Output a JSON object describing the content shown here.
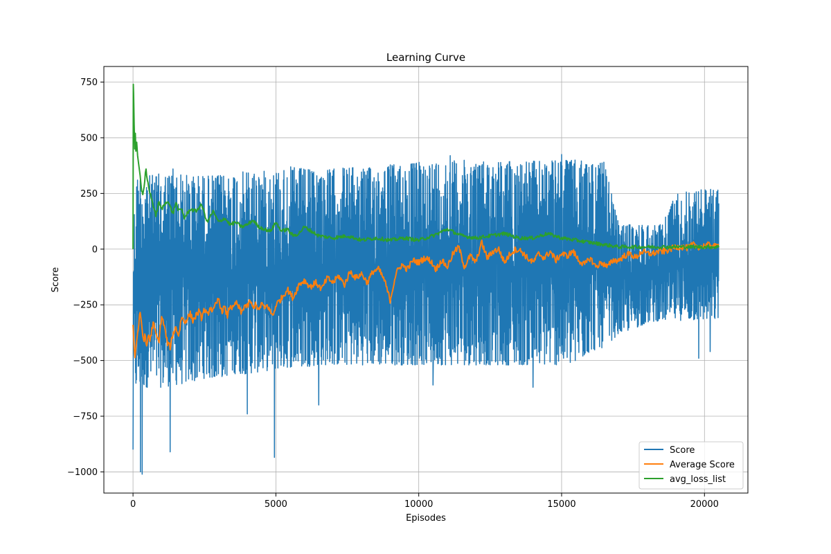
{
  "chart_data": {
    "type": "line",
    "title": "Learning Curve",
    "xlabel": "Episodes",
    "ylabel": "Score",
    "xlim": [
      -1020,
      21520
    ],
    "ylim": [
      -1095,
      820
    ],
    "xticks": [
      0,
      5000,
      10000,
      15000,
      20000
    ],
    "yticks": [
      -1000,
      -750,
      -500,
      -250,
      0,
      250,
      500,
      750
    ],
    "grid": true,
    "legend_position": "lower-right",
    "series": [
      {
        "name": "Score",
        "color": "#1f77b4",
        "kind": "noisy-band",
        "x": [
          0,
          100,
          300,
          600,
          1000,
          1500,
          2000,
          2500,
          3000,
          3500,
          4000,
          4500,
          5000,
          5500,
          6000,
          6500,
          7000,
          7500,
          8000,
          8500,
          9000,
          9500,
          10000,
          10500,
          11000,
          11500,
          12000,
          12500,
          13000,
          13500,
          14000,
          14500,
          15000,
          15500,
          16000,
          16500,
          17000,
          17500,
          18000,
          18500,
          19000,
          19500,
          20000,
          20500
        ],
        "upper": [
          60,
          320,
          340,
          330,
          340,
          340,
          330,
          330,
          330,
          340,
          350,
          350,
          350,
          370,
          360,
          350,
          360,
          370,
          360,
          370,
          380,
          380,
          390,
          390,
          395,
          400,
          395,
          395,
          395,
          395,
          395,
          395,
          400,
          400,
          390,
          390,
          110,
          110,
          110,
          110,
          250,
          260,
          270,
          270
        ],
        "lower": [
          -680,
          -640,
          -620,
          -620,
          -620,
          -610,
          -600,
          -580,
          -580,
          -560,
          -560,
          -550,
          -540,
          -530,
          -530,
          -520,
          -520,
          -520,
          -520,
          -520,
          -520,
          -520,
          -520,
          -520,
          -520,
          -520,
          -520,
          -520,
          -520,
          -520,
          -520,
          -520,
          -520,
          -520,
          -460,
          -440,
          -380,
          -360,
          -330,
          -320,
          -320,
          -320,
          -320,
          -320
        ],
        "spikes": [
          {
            "x": 0,
            "y": -900
          },
          {
            "x": 260,
            "y": -1000
          },
          {
            "x": 320,
            "y": -1010
          },
          {
            "x": 1300,
            "y": -910
          },
          {
            "x": 1400,
            "y": -860
          },
          {
            "x": 4000,
            "y": -740
          },
          {
            "x": 4950,
            "y": -935
          },
          {
            "x": 6500,
            "y": -700
          },
          {
            "x": 10500,
            "y": -610
          },
          {
            "x": 14000,
            "y": -620
          },
          {
            "x": 19800,
            "y": -490
          },
          {
            "x": 20200,
            "y": -460
          },
          {
            "x": 15000,
            "y": 425
          },
          {
            "x": 11100,
            "y": 420
          },
          {
            "x": 1400,
            "y": 360
          }
        ]
      },
      {
        "name": "Average Score",
        "color": "#ff7f0e",
        "x": [
          0,
          60,
          120,
          180,
          240,
          300,
          360,
          420,
          480,
          540,
          600,
          700,
          800,
          900,
          1000,
          1100,
          1200,
          1300,
          1400,
          1500,
          1600,
          1700,
          1800,
          1900,
          2000,
          2100,
          2200,
          2300,
          2400,
          2500,
          2600,
          2700,
          2800,
          2900,
          3000,
          3100,
          3200,
          3300,
          3400,
          3500,
          3600,
          3700,
          3800,
          3900,
          4000,
          4100,
          4200,
          4300,
          4400,
          4500,
          4600,
          4700,
          4800,
          4900,
          5000,
          5200,
          5400,
          5600,
          5800,
          6000,
          6200,
          6400,
          6600,
          6800,
          7000,
          7200,
          7400,
          7600,
          7800,
          8000,
          8200,
          8400,
          8600,
          8800,
          9000,
          9200,
          9400,
          9600,
          9800,
          10000,
          10200,
          10400,
          10600,
          10800,
          11000,
          11200,
          11400,
          11600,
          11800,
          12000,
          12200,
          12400,
          12600,
          12800,
          13000,
          13200,
          13400,
          13600,
          13800,
          14000,
          14200,
          14400,
          14600,
          14800,
          15000,
          15200,
          15400,
          15600,
          15800,
          16000,
          16200,
          16400,
          16600,
          16800,
          17000,
          17200,
          17400,
          17600,
          17800,
          18000,
          18200,
          18400,
          18600,
          18800,
          19000,
          19200,
          19400,
          19600,
          19800,
          20000,
          20200,
          20400,
          20500
        ],
        "y": [
          -340,
          -490,
          -420,
          -360,
          -290,
          -330,
          -410,
          -390,
          -440,
          -380,
          -410,
          -330,
          -380,
          -420,
          -300,
          -350,
          -420,
          -440,
          -380,
          -350,
          -390,
          -300,
          -330,
          -310,
          -290,
          -320,
          -300,
          -280,
          -310,
          -270,
          -300,
          -260,
          -280,
          -250,
          -220,
          -280,
          -260,
          -300,
          -250,
          -270,
          -240,
          -260,
          -290,
          -250,
          -260,
          -230,
          -270,
          -240,
          -280,
          -240,
          -270,
          -250,
          -280,
          -300,
          -250,
          -220,
          -180,
          -220,
          -160,
          -140,
          -170,
          -150,
          -180,
          -130,
          -150,
          -120,
          -160,
          -100,
          -130,
          -110,
          -150,
          -100,
          -90,
          -140,
          -230,
          -110,
          -70,
          -90,
          -50,
          -60,
          -40,
          -50,
          -90,
          -50,
          -80,
          -20,
          10,
          -80,
          -30,
          -60,
          30,
          -40,
          -10,
          0,
          -60,
          -20,
          0,
          -10,
          -40,
          -60,
          -20,
          -40,
          -10,
          -50,
          -20,
          -30,
          -10,
          -50,
          -70,
          -40,
          -80,
          -60,
          -80,
          -50,
          -50,
          -30,
          -20,
          -40,
          -10,
          -20,
          -20,
          -10,
          -10,
          0,
          10,
          10,
          5,
          20,
          10,
          15,
          20,
          10,
          20
        ],
        "noise": 14
      },
      {
        "name": "avg_loss_list",
        "color": "#2ca02c",
        "x": [
          0,
          10,
          20,
          40,
          60,
          80,
          100,
          130,
          160,
          200,
          250,
          300,
          350,
          400,
          450,
          500,
          550,
          600,
          700,
          800,
          900,
          1000,
          1100,
          1200,
          1300,
          1400,
          1500,
          1600,
          1700,
          1800,
          1900,
          2000,
          2200,
          2400,
          2600,
          2800,
          3000,
          3200,
          3400,
          3600,
          3800,
          4000,
          4200,
          4400,
          4600,
          4800,
          5000,
          5200,
          5400,
          5600,
          5800,
          6000,
          6500,
          7000,
          7500,
          8000,
          8500,
          9000,
          9500,
          10000,
          10500,
          11000,
          11500,
          12000,
          12500,
          13000,
          13500,
          14000,
          14500,
          15000,
          15500,
          16000,
          16500,
          17000,
          17500,
          18000,
          18500,
          19000,
          19500,
          20000,
          20500
        ],
        "y": [
          0,
          740,
          700,
          560,
          450,
          520,
          440,
          480,
          420,
          380,
          330,
          260,
          240,
          290,
          360,
          310,
          280,
          250,
          200,
          150,
          210,
          180,
          200,
          220,
          190,
          160,
          210,
          170,
          180,
          140,
          160,
          180,
          170,
          200,
          120,
          170,
          120,
          140,
          110,
          120,
          100,
          110,
          130,
          100,
          90,
          80,
          120,
          80,
          90,
          60,
          70,
          100,
          60,
          50,
          60,
          40,
          50,
          40,
          50,
          40,
          60,
          90,
          60,
          50,
          60,
          70,
          50,
          50,
          70,
          50,
          40,
          30,
          20,
          10,
          10,
          10,
          10,
          10,
          10,
          10,
          10
        ],
        "noise": 8
      }
    ]
  }
}
